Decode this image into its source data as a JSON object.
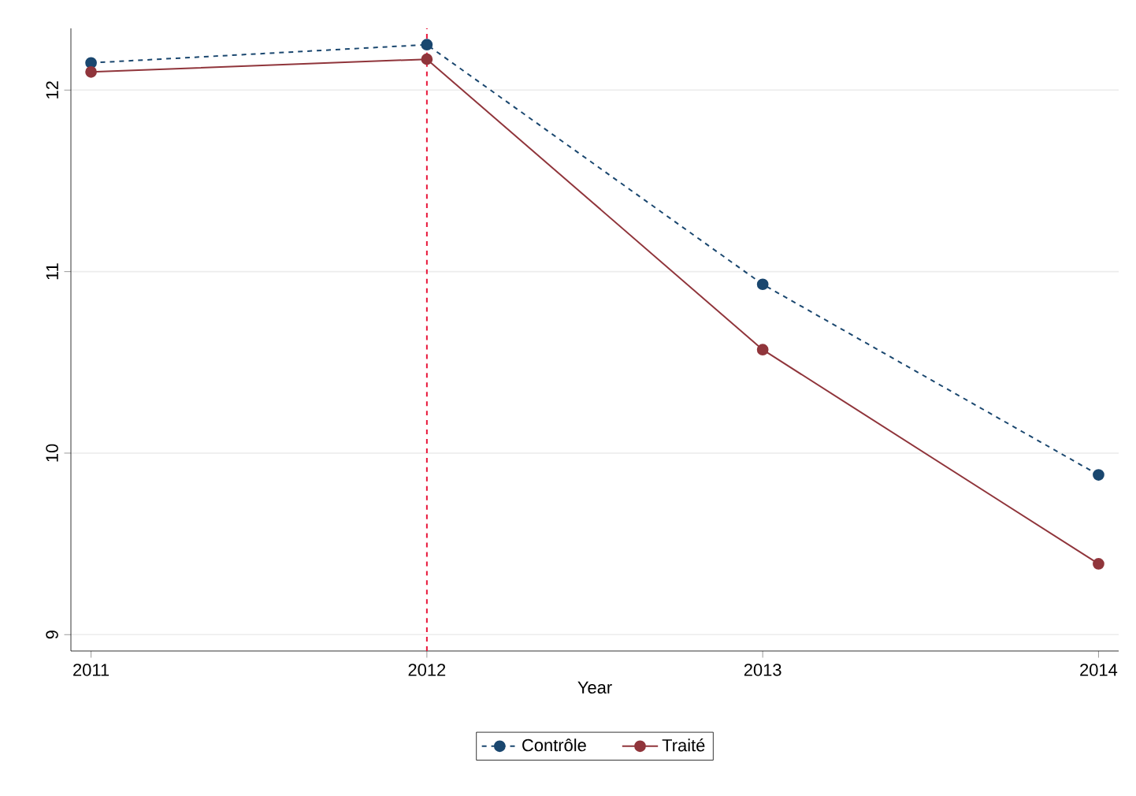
{
  "chart_data": {
    "type": "line",
    "xlabel": "Year",
    "x": [
      2011,
      2012,
      2013,
      2014
    ],
    "series": [
      {
        "name": "Contrôle",
        "color": "#1a476f",
        "line_style": "dashed",
        "values": [
          12.15,
          12.25,
          10.93,
          9.88
        ]
      },
      {
        "name": "Traité",
        "color": "#90353b",
        "line_style": "solid",
        "values": [
          12.1,
          12.17,
          10.57,
          9.39
        ]
      }
    ],
    "xlim": [
      2010.94,
      2014.06
    ],
    "ylim": [
      8.91,
      12.34
    ],
    "xticks": [
      2011,
      2012,
      2013,
      2014
    ],
    "yticks": [
      9,
      10,
      11,
      12
    ],
    "grid": "y",
    "marker": "circle",
    "legend": "bottom",
    "ref_lines": [
      {
        "axis": "x",
        "value": 2012,
        "color": "#e8173a",
        "line_style": "dashed"
      }
    ]
  }
}
